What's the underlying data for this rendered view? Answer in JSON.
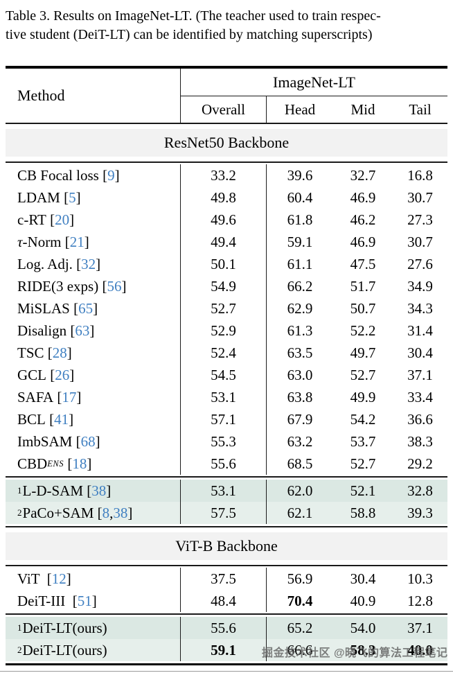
{
  "caption": {
    "line1": "Table 3. Results on ImageNet-LT. (The teacher used to train respec-",
    "line2": "tive student (DeiT-LT) can be identified by matching superscripts)"
  },
  "header": {
    "method_label": "Method",
    "group_label": "ImageNet-LT",
    "columns": [
      "Overall",
      "Head",
      "Mid",
      "Tail"
    ]
  },
  "sections": [
    {
      "title": "ResNet50 Backbone",
      "groups": [
        {
          "highlight": false,
          "rows": [
            {
              "sup": "",
              "name": "CB Focal loss",
              "cite": "[9]",
              "values": [
                [
                  "33.2",
                  0
                ],
                [
                  "39.6",
                  0
                ],
                [
                  "32.7",
                  0
                ],
                [
                  "16.8",
                  0
                ]
              ]
            },
            {
              "sup": "",
              "name": "LDAM",
              "cite": "[5]",
              "values": [
                [
                  "49.8",
                  0
                ],
                [
                  "60.4",
                  0
                ],
                [
                  "46.9",
                  0
                ],
                [
                  "30.7",
                  0
                ]
              ]
            },
            {
              "sup": "",
              "name": "c-RT",
              "cite": "[20]",
              "values": [
                [
                  "49.6",
                  0
                ],
                [
                  "61.8",
                  0
                ],
                [
                  "46.2",
                  0
                ],
                [
                  "27.3",
                  0
                ]
              ]
            },
            {
              "sup": "",
              "italic_prefix": "τ",
              "name": "-Norm",
              "cite": "[21]",
              "values": [
                [
                  "49.4",
                  0
                ],
                [
                  "59.1",
                  0
                ],
                [
                  "46.9",
                  0
                ],
                [
                  "30.7",
                  0
                ]
              ]
            },
            {
              "sup": "",
              "name": "Log. Adj.",
              "cite": "[32]",
              "values": [
                [
                  "50.1",
                  0
                ],
                [
                  "61.1",
                  0
                ],
                [
                  "47.5",
                  0
                ],
                [
                  "27.6",
                  0
                ]
              ]
            },
            {
              "sup": "",
              "name": "RIDE(3 exps)",
              "cite": "[56]",
              "values": [
                [
                  "54.9",
                  0
                ],
                [
                  "66.2",
                  0
                ],
                [
                  "51.7",
                  0
                ],
                [
                  "34.9",
                  0
                ]
              ]
            },
            {
              "sup": "",
              "name": "MiSLAS",
              "cite": "[65]",
              "values": [
                [
                  "52.7",
                  0
                ],
                [
                  "62.9",
                  0
                ],
                [
                  "50.7",
                  0
                ],
                [
                  "34.3",
                  0
                ]
              ]
            },
            {
              "sup": "",
              "name": "Disalign",
              "cite": "[63]",
              "values": [
                [
                  "52.9",
                  0
                ],
                [
                  "61.3",
                  0
                ],
                [
                  "52.2",
                  0
                ],
                [
                  "31.4",
                  0
                ]
              ]
            },
            {
              "sup": "",
              "name": "TSC",
              "cite": "[28]",
              "values": [
                [
                  "52.4",
                  0
                ],
                [
                  "63.5",
                  0
                ],
                [
                  "49.7",
                  0
                ],
                [
                  "30.4",
                  0
                ]
              ]
            },
            {
              "sup": "",
              "name": "GCL",
              "cite": "[26]",
              "values": [
                [
                  "54.5",
                  0
                ],
                [
                  "63.0",
                  0
                ],
                [
                  "52.7",
                  0
                ],
                [
                  "37.1",
                  0
                ]
              ]
            },
            {
              "sup": "",
              "name": "SAFA",
              "cite": "[17]",
              "values": [
                [
                  "53.1",
                  0
                ],
                [
                  "63.8",
                  0
                ],
                [
                  "49.9",
                  0
                ],
                [
                  "33.4",
                  0
                ]
              ]
            },
            {
              "sup": "",
              "name": "BCL",
              "cite": "[41]",
              "values": [
                [
                  "57.1",
                  0
                ],
                [
                  "67.9",
                  0
                ],
                [
                  "54.2",
                  0
                ],
                [
                  "36.6",
                  0
                ]
              ]
            },
            {
              "sup": "",
              "name": "ImbSAM",
              "cite": "[68]",
              "values": [
                [
                  "55.3",
                  0
                ],
                [
                  "63.2",
                  0
                ],
                [
                  "53.7",
                  0
                ],
                [
                  "38.3",
                  0
                ]
              ]
            },
            {
              "sup": "",
              "name": "CBD",
              "sub": "ENS",
              "cite": "[18]",
              "values": [
                [
                  "55.6",
                  0
                ],
                [
                  "68.5",
                  0
                ],
                [
                  "52.7",
                  0
                ],
                [
                  "29.2",
                  0
                ]
              ]
            }
          ]
        },
        {
          "highlight": true,
          "rows": [
            {
              "sup": "1",
              "name": "L-D-SAM",
              "cite": "[38]",
              "values": [
                [
                  "53.1",
                  0
                ],
                [
                  "62.0",
                  0
                ],
                [
                  "52.1",
                  0
                ],
                [
                  "32.8",
                  0
                ]
              ]
            },
            {
              "sup": "2",
              "name": "PaCo+SAM",
              "cite": "[8, 38]",
              "values": [
                [
                  "57.5",
                  0
                ],
                [
                  "62.1",
                  0
                ],
                [
                  "58.8",
                  0
                ],
                [
                  "39.3",
                  0
                ]
              ]
            }
          ]
        }
      ]
    },
    {
      "title": "ViT-B Backbone",
      "groups": [
        {
          "highlight": false,
          "rows": [
            {
              "sup": "",
              "name": "ViT ",
              "cite": "[12]",
              "values": [
                [
                  "37.5",
                  0
                ],
                [
                  "56.9",
                  0
                ],
                [
                  "30.4",
                  0
                ],
                [
                  "10.3",
                  0
                ]
              ]
            },
            {
              "sup": "",
              "name": "DeiT-III ",
              "cite": "[51]",
              "values": [
                [
                  "48.4",
                  0
                ],
                [
                  "70.4",
                  1
                ],
                [
                  "40.9",
                  0
                ],
                [
                  "12.8",
                  0
                ]
              ]
            }
          ]
        },
        {
          "highlight": true,
          "rows": [
            {
              "sup": "1",
              "name": "DeiT-LT(ours)",
              "cite": "",
              "values": [
                [
                  "55.6",
                  0
                ],
                [
                  "65.2",
                  0
                ],
                [
                  "54.0",
                  0
                ],
                [
                  "37.1",
                  0
                ]
              ]
            },
            {
              "sup": "2",
              "name": "DeiT-LT(ours)",
              "cite": "",
              "values": [
                [
                  "59.1",
                  1
                ],
                [
                  "66.6",
                  0
                ],
                [
                  "58.3",
                  1
                ],
                [
                  "40.0",
                  1
                ]
              ]
            }
          ]
        }
      ]
    }
  ],
  "watermark": "掘金技术社区 @晓飞的算法工程笔记",
  "colors": {
    "citation_blue": "#3f7fc1",
    "section_band": "#f2f2f2",
    "highlight_a": "#dbe8e3",
    "highlight_b": "#e6efeb",
    "rule_color": "#1a1a1a"
  }
}
